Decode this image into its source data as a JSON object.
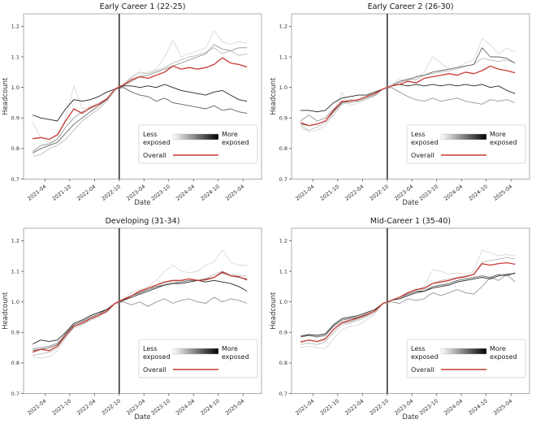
{
  "figure": {
    "background": "#ffffff",
    "spine_color": "#999999",
    "tick_color": "#555555",
    "text_color": "#333333",
    "title_color": "#1a1a1a",
    "event_line_color": "#1a1a1a",
    "legend": {
      "less_exposed": [
        "Less",
        "exposed"
      ],
      "more_exposed": [
        "More",
        "exposed"
      ],
      "overall_label": "Overall",
      "overall_color": "#c73a34",
      "gradient": [
        "#ffffff",
        "#000000"
      ],
      "border_color": "#d0d0d0"
    }
  },
  "chart_data": [
    {
      "type": "line",
      "title": "Early Career 1 (22-25)",
      "xlabel": "Date",
      "ylabel": "Headcount",
      "ylim": [
        0.7,
        1.241
      ],
      "yticks": [
        "0.7",
        "0.8",
        "0.9",
        "1.0",
        "1.1",
        "1.2"
      ],
      "xticks": [
        "2021-04",
        "2021-10",
        "2022-04",
        "2022-10",
        "2023-04",
        "2023-10",
        "2024-04",
        "2024-10",
        "2025-04"
      ],
      "event_date": "2022-10",
      "x": [
        "2021-01",
        "2021-03",
        "2021-05",
        "2021-07",
        "2021-09",
        "2021-11",
        "2022-01",
        "2022-03",
        "2022-05",
        "2022-07",
        "2022-09",
        "2022-11",
        "2023-01",
        "2023-03",
        "2023-05",
        "2023-07",
        "2023-09",
        "2023-11",
        "2024-01",
        "2024-03",
        "2024-05",
        "2024-07",
        "2024-09",
        "2024-11",
        "2025-01",
        "2025-03",
        "2025-05"
      ],
      "series": [
        {
          "name": "quintile-1-least-exposed",
          "color": "#d9d9d9",
          "values": [
            0.885,
            0.835,
            0.82,
            0.83,
            0.9,
            1.005,
            0.93,
            0.935,
            0.95,
            0.965,
            0.995,
            1.01,
            1.03,
            1.04,
            1.05,
            1.06,
            1.1,
            1.155,
            1.1,
            1.11,
            1.12,
            1.13,
            1.185,
            1.15,
            1.14,
            1.15,
            1.145
          ]
        },
        {
          "name": "quintile-2",
          "color": "#bdbdbd",
          "values": [
            0.775,
            0.78,
            0.8,
            0.81,
            0.83,
            0.86,
            0.89,
            0.91,
            0.93,
            0.955,
            0.99,
            1.01,
            1.035,
            1.05,
            1.045,
            1.055,
            1.065,
            1.08,
            1.09,
            1.1,
            1.105,
            1.115,
            1.13,
            1.11,
            1.12,
            1.105,
            1.11
          ]
        },
        {
          "name": "quintile-3",
          "color": "#969696",
          "values": [
            0.79,
            0.81,
            0.815,
            0.83,
            0.87,
            0.9,
            0.92,
            0.93,
            0.945,
            0.96,
            0.995,
            1.005,
            1.02,
            1.035,
            1.04,
            1.05,
            1.06,
            1.07,
            1.08,
            1.09,
            1.1,
            1.11,
            1.14,
            1.125,
            1.12,
            1.13,
            1.13
          ]
        },
        {
          "name": "quintile-4",
          "color": "#636363",
          "values": [
            0.785,
            0.8,
            0.81,
            0.82,
            0.85,
            0.88,
            0.9,
            0.92,
            0.94,
            0.96,
            0.995,
            1.0,
            0.985,
            0.975,
            0.97,
            0.955,
            0.965,
            0.95,
            0.945,
            0.94,
            0.935,
            0.93,
            0.94,
            0.925,
            0.93,
            0.92,
            0.915
          ]
        },
        {
          "name": "quintile-5-most-exposed",
          "color": "#252525",
          "values": [
            0.91,
            0.9,
            0.895,
            0.89,
            0.93,
            0.96,
            0.955,
            0.96,
            0.97,
            0.985,
            0.995,
            1.005,
            1.005,
            1.0,
            1.005,
            1.0,
            1.01,
            1.0,
            0.99,
            0.985,
            0.98,
            0.975,
            0.985,
            0.99,
            0.975,
            0.96,
            0.955
          ]
        },
        {
          "name": "overall",
          "color": "#c73a34",
          "values": [
            0.832,
            0.836,
            0.83,
            0.845,
            0.89,
            0.93,
            0.915,
            0.935,
            0.945,
            0.962,
            0.995,
            1.008,
            1.025,
            1.035,
            1.03,
            1.04,
            1.05,
            1.07,
            1.06,
            1.065,
            1.06,
            1.065,
            1.075,
            1.097,
            1.08,
            1.075,
            1.067
          ]
        }
      ]
    },
    {
      "type": "line",
      "title": "Early Career 2 (26-30)",
      "xlabel": "Date",
      "ylabel": "Headcount",
      "ylim": [
        0.7,
        1.241
      ],
      "yticks": [
        "0.7",
        "0.8",
        "0.9",
        "1.0",
        "1.1",
        "1.2"
      ],
      "xticks": [
        "2021-04",
        "2021-10",
        "2022-04",
        "2022-10",
        "2023-04",
        "2023-10",
        "2024-04",
        "2024-10",
        "2025-04"
      ],
      "event_date": "2022-10",
      "x": [
        "2021-01",
        "2021-03",
        "2021-05",
        "2021-07",
        "2021-09",
        "2021-11",
        "2022-01",
        "2022-03",
        "2022-05",
        "2022-07",
        "2022-09",
        "2022-11",
        "2023-01",
        "2023-03",
        "2023-05",
        "2023-07",
        "2023-09",
        "2023-11",
        "2024-01",
        "2024-03",
        "2024-05",
        "2024-07",
        "2024-09",
        "2024-11",
        "2025-01",
        "2025-03",
        "2025-05"
      ],
      "series": [
        {
          "name": "quintile-1-least-exposed",
          "color": "#d9d9d9",
          "values": [
            0.87,
            0.855,
            0.86,
            0.875,
            0.92,
            0.985,
            0.94,
            0.95,
            0.96,
            0.972,
            0.995,
            1.008,
            1.03,
            1.02,
            1.03,
            1.05,
            1.1,
            1.08,
            1.06,
            1.065,
            1.08,
            1.09,
            1.16,
            1.14,
            1.11,
            1.13,
            1.115
          ]
        },
        {
          "name": "quintile-2",
          "color": "#bdbdbd",
          "values": [
            0.875,
            0.86,
            0.87,
            0.885,
            0.91,
            0.945,
            0.95,
            0.955,
            0.965,
            0.975,
            0.995,
            1.005,
            1.015,
            1.03,
            1.025,
            1.04,
            1.045,
            1.05,
            1.055,
            1.06,
            1.07,
            1.075,
            1.095,
            1.09,
            1.085,
            1.09,
            1.08
          ]
        },
        {
          "name": "quintile-3",
          "color": "#969696",
          "values": [
            0.89,
            0.91,
            0.89,
            0.9,
            0.93,
            0.95,
            0.96,
            0.955,
            0.965,
            0.975,
            0.995,
            1.0,
            0.985,
            0.97,
            0.96,
            0.955,
            0.965,
            0.955,
            0.96,
            0.965,
            0.955,
            0.95,
            0.945,
            0.96,
            0.955,
            0.96,
            0.95
          ]
        },
        {
          "name": "quintile-4",
          "color": "#636363",
          "values": [
            0.88,
            0.875,
            0.88,
            0.89,
            0.92,
            0.95,
            0.955,
            0.96,
            0.97,
            0.98,
            0.995,
            1.005,
            1.02,
            1.025,
            1.035,
            1.04,
            1.05,
            1.055,
            1.06,
            1.065,
            1.07,
            1.075,
            1.13,
            1.1,
            1.1,
            1.095,
            1.08
          ]
        },
        {
          "name": "quintile-5-most-exposed",
          "color": "#252525",
          "values": [
            0.925,
            0.925,
            0.92,
            0.925,
            0.95,
            0.965,
            0.97,
            0.975,
            0.975,
            0.985,
            0.995,
            1.005,
            1.01,
            1.005,
            1.01,
            1.005,
            1.01,
            1.005,
            1.01,
            1.005,
            1.01,
            1.005,
            1.01,
            1.0,
            1.005,
            0.99,
            0.98
          ]
        },
        {
          "name": "overall",
          "color": "#c73a34",
          "values": [
            0.885,
            0.875,
            0.88,
            0.89,
            0.925,
            0.955,
            0.955,
            0.96,
            0.97,
            0.98,
            0.995,
            1.005,
            1.01,
            1.02,
            1.015,
            1.03,
            1.035,
            1.04,
            1.045,
            1.04,
            1.05,
            1.045,
            1.055,
            1.07,
            1.06,
            1.055,
            1.048
          ]
        }
      ]
    },
    {
      "type": "line",
      "title": "Developing (31-34)",
      "xlabel": "Date",
      "ylabel": "Headcount",
      "ylim": [
        0.7,
        1.241
      ],
      "yticks": [
        "0.7",
        "0.8",
        "0.9",
        "1.0",
        "1.1",
        "1.2"
      ],
      "xticks": [
        "2021-04",
        "2021-10",
        "2022-04",
        "2022-10",
        "2023-04",
        "2023-10",
        "2024-04",
        "2024-10",
        "2025-04"
      ],
      "event_date": "2022-10",
      "x": [
        "2021-01",
        "2021-03",
        "2021-05",
        "2021-07",
        "2021-09",
        "2021-11",
        "2022-01",
        "2022-03",
        "2022-05",
        "2022-07",
        "2022-09",
        "2022-11",
        "2023-01",
        "2023-03",
        "2023-05",
        "2023-07",
        "2023-09",
        "2023-11",
        "2024-01",
        "2024-03",
        "2024-05",
        "2024-07",
        "2024-09",
        "2024-11",
        "2025-01",
        "2025-03",
        "2025-05"
      ],
      "series": [
        {
          "name": "quintile-1-least-exposed",
          "color": "#d9d9d9",
          "values": [
            0.82,
            0.815,
            0.82,
            0.84,
            0.88,
            0.92,
            0.93,
            0.94,
            0.95,
            0.97,
            0.995,
            1.01,
            1.03,
            1.04,
            1.05,
            1.07,
            1.1,
            1.12,
            1.1,
            1.095,
            1.1,
            1.12,
            1.13,
            1.17,
            1.13,
            1.12,
            1.12
          ]
        },
        {
          "name": "quintile-2",
          "color": "#bdbdbd",
          "values": [
            0.825,
            0.83,
            0.835,
            0.85,
            0.885,
            0.915,
            0.925,
            0.94,
            0.955,
            0.965,
            0.995,
            1.005,
            1.02,
            1.03,
            1.045,
            1.055,
            1.06,
            1.065,
            1.07,
            1.075,
            1.07,
            1.075,
            1.09,
            1.1,
            1.09,
            1.085,
            1.085
          ]
        },
        {
          "name": "quintile-3",
          "color": "#969696",
          "values": [
            0.845,
            0.85,
            0.855,
            0.865,
            0.89,
            0.92,
            0.93,
            0.945,
            0.955,
            0.97,
            0.995,
            1.0,
            0.99,
            1.0,
            0.985,
            1.0,
            1.01,
            0.995,
            1.005,
            1.01,
            1.0,
            0.995,
            1.015,
            1.0,
            1.01,
            1.005,
            0.995
          ]
        },
        {
          "name": "quintile-4",
          "color": "#636363",
          "values": [
            0.84,
            0.845,
            0.85,
            0.86,
            0.895,
            0.925,
            0.935,
            0.95,
            0.96,
            0.975,
            0.995,
            1.005,
            1.02,
            1.03,
            1.04,
            1.05,
            1.055,
            1.06,
            1.065,
            1.07,
            1.07,
            1.075,
            1.08,
            1.095,
            1.085,
            1.08,
            1.075
          ]
        },
        {
          "name": "quintile-5-most-exposed",
          "color": "#252525",
          "values": [
            0.862,
            0.875,
            0.87,
            0.875,
            0.9,
            0.93,
            0.94,
            0.955,
            0.965,
            0.975,
            0.995,
            1.005,
            1.015,
            1.025,
            1.035,
            1.045,
            1.055,
            1.06,
            1.06,
            1.065,
            1.07,
            1.065,
            1.07,
            1.065,
            1.06,
            1.05,
            1.035
          ]
        },
        {
          "name": "overall",
          "color": "#c73a34",
          "values": [
            0.835,
            0.845,
            0.84,
            0.855,
            0.89,
            0.92,
            0.93,
            0.945,
            0.955,
            0.97,
            0.995,
            1.008,
            1.02,
            1.035,
            1.045,
            1.055,
            1.065,
            1.07,
            1.07,
            1.075,
            1.07,
            1.072,
            1.08,
            1.098,
            1.085,
            1.082,
            1.072
          ]
        }
      ]
    },
    {
      "type": "line",
      "title": "Mid-Career 1 (35-40)",
      "xlabel": "Date",
      "ylabel": "Headcount",
      "ylim": [
        0.7,
        1.241
      ],
      "yticks": [
        "0.7",
        "0.8",
        "0.9",
        "1.0",
        "1.1",
        "1.2"
      ],
      "xticks": [
        "2021-04",
        "2021-10",
        "2022-04",
        "2022-10",
        "2023-04",
        "2023-10",
        "2024-04",
        "2024-10",
        "2025-04"
      ],
      "event_date": "2022-10",
      "x": [
        "2021-01",
        "2021-03",
        "2021-05",
        "2021-07",
        "2021-09",
        "2021-11",
        "2022-01",
        "2022-03",
        "2022-05",
        "2022-07",
        "2022-09",
        "2022-11",
        "2023-01",
        "2023-03",
        "2023-05",
        "2023-07",
        "2023-09",
        "2023-11",
        "2024-01",
        "2024-03",
        "2024-05",
        "2024-07",
        "2024-09",
        "2024-11",
        "2025-01",
        "2025-03",
        "2025-05"
      ],
      "series": [
        {
          "name": "quintile-1-least-exposed",
          "color": "#d9d9d9",
          "values": [
            0.85,
            0.855,
            0.85,
            0.847,
            0.88,
            0.91,
            0.92,
            0.925,
            0.94,
            0.96,
            0.995,
            1.005,
            1.01,
            1.025,
            1.035,
            1.05,
            1.105,
            1.1,
            1.09,
            1.095,
            1.09,
            1.1,
            1.17,
            1.16,
            1.15,
            1.155,
            1.15
          ]
        },
        {
          "name": "quintile-2",
          "color": "#bdbdbd",
          "values": [
            0.86,
            0.865,
            0.86,
            0.87,
            0.9,
            0.925,
            0.93,
            0.94,
            0.95,
            0.965,
            0.995,
            1.005,
            1.015,
            1.03,
            1.04,
            1.04,
            1.06,
            1.07,
            1.075,
            1.08,
            1.085,
            1.09,
            1.13,
            1.135,
            1.14,
            1.145,
            1.14
          ]
        },
        {
          "name": "quintile-3",
          "color": "#969696",
          "values": [
            0.87,
            0.875,
            0.87,
            0.88,
            0.91,
            0.93,
            0.935,
            0.945,
            0.955,
            0.97,
            0.995,
            1.0,
            0.995,
            1.01,
            1.005,
            1.01,
            1.03,
            1.02,
            1.03,
            1.04,
            1.03,
            1.025,
            1.05,
            1.08,
            1.07,
            1.09,
            1.065
          ]
        },
        {
          "name": "quintile-4",
          "color": "#636363",
          "values": [
            0.885,
            0.89,
            0.885,
            0.89,
            0.92,
            0.94,
            0.945,
            0.95,
            0.96,
            0.97,
            0.995,
            1.005,
            1.015,
            1.025,
            1.035,
            1.035,
            1.05,
            1.055,
            1.06,
            1.07,
            1.075,
            1.08,
            1.085,
            1.08,
            1.09,
            1.085,
            1.095
          ]
        },
        {
          "name": "quintile-5-most-exposed",
          "color": "#252525",
          "values": [
            0.888,
            0.893,
            0.89,
            0.895,
            0.925,
            0.945,
            0.95,
            0.955,
            0.965,
            0.975,
            0.995,
            1.005,
            1.01,
            1.02,
            1.03,
            1.035,
            1.045,
            1.05,
            1.055,
            1.065,
            1.07,
            1.075,
            1.08,
            1.075,
            1.085,
            1.09,
            1.093
          ]
        },
        {
          "name": "overall",
          "color": "#c73a34",
          "values": [
            0.868,
            0.875,
            0.87,
            0.878,
            0.91,
            0.932,
            0.94,
            0.948,
            0.958,
            0.97,
            0.995,
            1.005,
            1.015,
            1.03,
            1.04,
            1.045,
            1.06,
            1.065,
            1.07,
            1.078,
            1.082,
            1.09,
            1.125,
            1.12,
            1.125,
            1.128,
            1.123
          ]
        }
      ]
    }
  ]
}
